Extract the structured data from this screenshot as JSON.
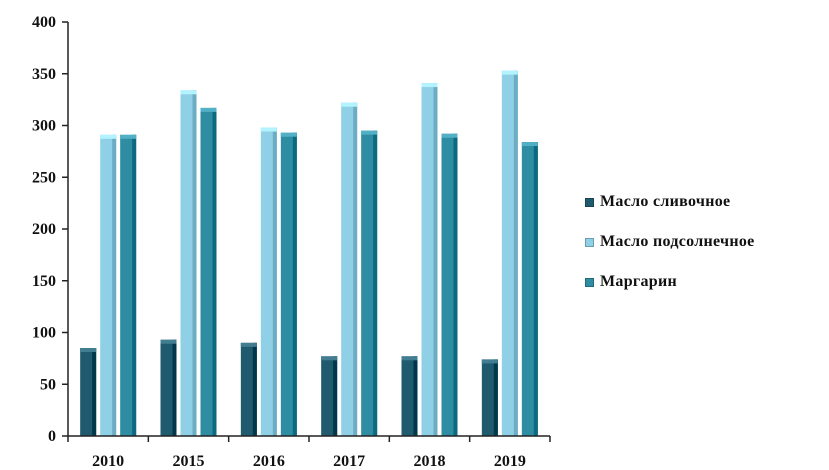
{
  "chart_data": {
    "type": "bar",
    "categories": [
      "2010",
      "2015",
      "2016",
      "2017",
      "2018",
      "2019"
    ],
    "series": [
      {
        "name": "Масло сливочное",
        "values": [
          85,
          93,
          90,
          77,
          77,
          74
        ],
        "color": "#1f5a6e"
      },
      {
        "name": "Масло подсолнечное",
        "values": [
          291,
          334,
          298,
          322,
          341,
          353
        ],
        "color": "#8fd0e6"
      },
      {
        "name": "Маргарин",
        "values": [
          291,
          317,
          293,
          295,
          292,
          284
        ],
        "color": "#2e8ca3"
      }
    ],
    "ylim": [
      0,
      400
    ],
    "yticks": [
      "0",
      "50",
      "100",
      "150",
      "200",
      "250",
      "300",
      "350",
      "400"
    ],
    "grid": false,
    "legend_position": "right",
    "title": "",
    "xlabel": "",
    "ylabel": ""
  }
}
